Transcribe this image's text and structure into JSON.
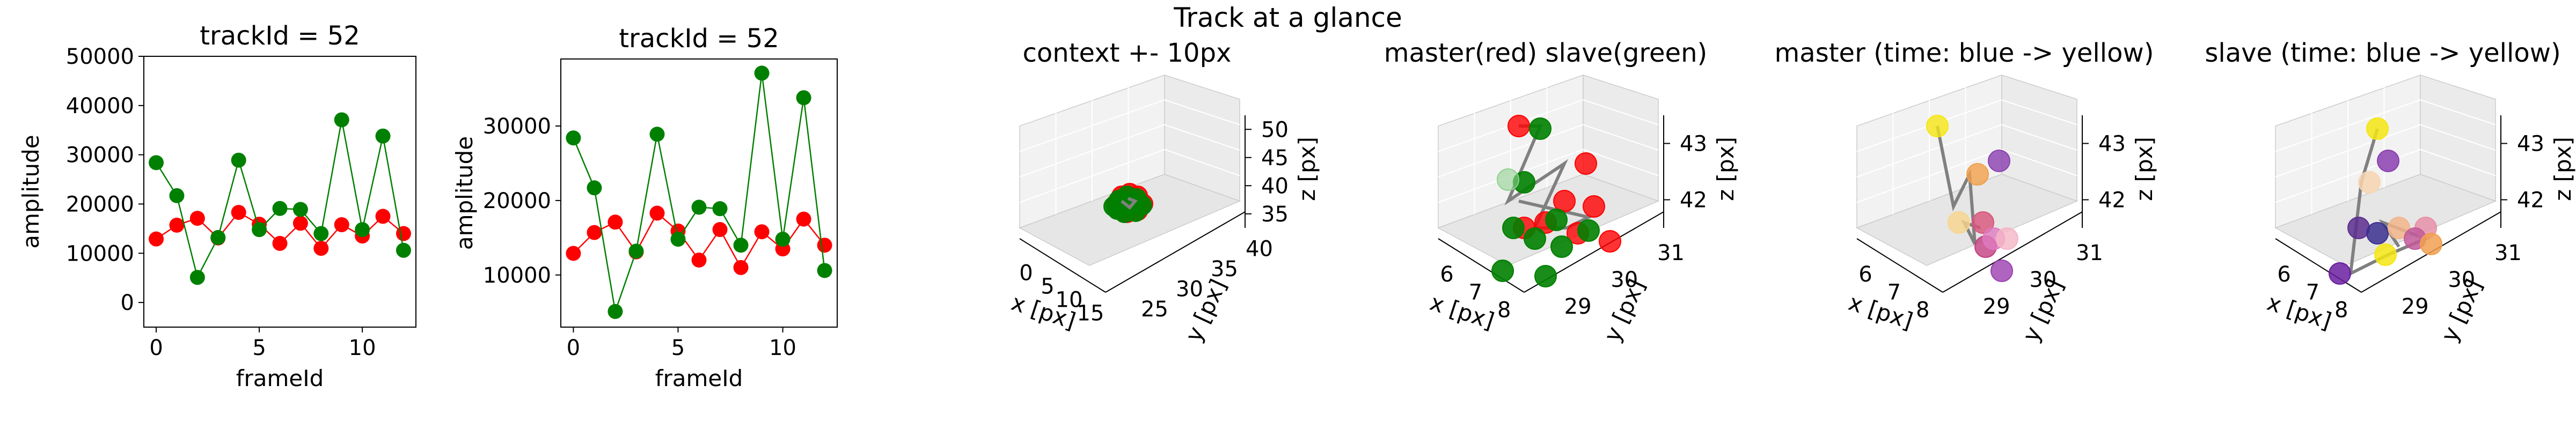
{
  "figure": {
    "title": "Track at a glance"
  },
  "colors": {
    "master": "#ff0000",
    "slave": "#008000",
    "line": "#808080"
  },
  "chart_data": [
    {
      "type": "line",
      "title": "trackId = 52",
      "xlabel": "frameId",
      "ylabel": "amplitude",
      "xlim": [
        -0.6,
        12.6
      ],
      "ylim": [
        -5000,
        50000
      ],
      "xticks": [
        0,
        5,
        10
      ],
      "yticks": [
        0,
        10000,
        20000,
        30000,
        40000,
        50000
      ],
      "x": [
        0,
        1,
        2,
        3,
        4,
        5,
        6,
        7,
        8,
        9,
        10,
        11,
        12
      ],
      "series": [
        {
          "color": "#ff0000",
          "values": [
            12900,
            15700,
            17100,
            13100,
            18300,
            15900,
            12000,
            16100,
            11000,
            15800,
            13500,
            17500,
            14000
          ]
        },
        {
          "color": "#008000",
          "values": [
            28400,
            21700,
            5100,
            13200,
            28900,
            14800,
            19100,
            18900,
            14000,
            37100,
            14800,
            33800,
            10600
          ]
        }
      ]
    },
    {
      "type": "line",
      "title": "trackId = 52",
      "xlabel": "frameId",
      "ylabel": "amplitude",
      "xlim": [
        -0.6,
        12.6
      ],
      "ylim": [
        3000,
        39000
      ],
      "xticks": [
        0,
        5,
        10
      ],
      "yticks": [
        10000,
        20000,
        30000
      ],
      "x": [
        0,
        1,
        2,
        3,
        4,
        5,
        6,
        7,
        8,
        9,
        10,
        11,
        12
      ],
      "series": [
        {
          "color": "#ff0000",
          "values": [
            12900,
            15700,
            17100,
            13100,
            18300,
            15900,
            12000,
            16100,
            11000,
            15800,
            13500,
            17500,
            14000
          ]
        },
        {
          "color": "#008000",
          "values": [
            28400,
            21700,
            5100,
            13200,
            28900,
            14800,
            19100,
            18900,
            14000,
            37100,
            14800,
            33800,
            10600
          ]
        }
      ]
    },
    {
      "type": "scatter3d",
      "title": "context +- 10px",
      "xlabel": "x [px]",
      "ylabel": "y [px]",
      "zlabel": "z [px]",
      "xticks": [
        "0",
        "5",
        "10",
        "15"
      ],
      "yticks": [
        "25",
        "30",
        "35",
        "40"
      ],
      "zticks": [
        "35",
        "40",
        "45",
        "50"
      ]
    },
    {
      "type": "scatter3d",
      "title": "master(red) slave(green)",
      "xlabel": "x [px]",
      "ylabel": "y [px]",
      "zlabel": "z [px]",
      "xticks": [
        "6",
        "7",
        "8"
      ],
      "yticks": [
        "29",
        "30",
        "31"
      ],
      "zticks": [
        "42",
        "43"
      ],
      "series": [
        {
          "name": "master",
          "color": "#ff0000"
        },
        {
          "name": "slave",
          "color": "#008000"
        }
      ]
    },
    {
      "type": "scatter3d",
      "title": "master (time: blue -> yellow)",
      "xlabel": "x [px]",
      "ylabel": "y [px]",
      "zlabel": "z [px]",
      "xticks": [
        "6",
        "7",
        "8"
      ],
      "yticks": [
        "29",
        "30",
        "31"
      ],
      "zticks": [
        "42",
        "43"
      ]
    },
    {
      "type": "scatter3d",
      "title": "slave (time: blue -> yellow)",
      "xlabel": "x [px]",
      "ylabel": "y [px]",
      "zlabel": "z [px]",
      "xticks": [
        "6",
        "7",
        "8"
      ],
      "yticks": [
        "29",
        "30",
        "31"
      ],
      "zticks": [
        "42",
        "43"
      ]
    }
  ]
}
